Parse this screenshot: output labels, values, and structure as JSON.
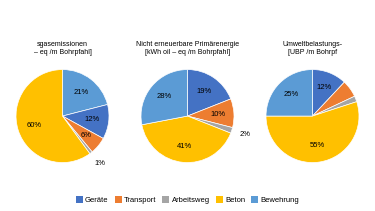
{
  "chart_data": [
    {
      "type": "pie",
      "title": "sgasemissionen\n– eq /m Bohrpfahl]",
      "categories": [
        "Bewehrung",
        "Geräte",
        "Transport",
        "Arbeitsweg",
        "Beton"
      ],
      "values": [
        21,
        12,
        6,
        1,
        60
      ],
      "value_labels": [
        "21%",
        "12%",
        "6%",
        "1%",
        "60%"
      ],
      "colors": [
        "#5B9BD5",
        "#4472C4",
        "#ED7D31",
        "#A5A5A5",
        "#FFC000"
      ],
      "data_labels": true
    },
    {
      "type": "pie",
      "title": "Nicht erneuerbare Primärenergie\n[kWh oil – eq /m Bohrpfahl]",
      "categories": [
        "Geräte",
        "Transport",
        "Arbeitsweg",
        "Beton",
        "Bewehrung"
      ],
      "values": [
        19,
        10,
        2,
        41,
        28
      ],
      "value_labels": [
        "19%",
        "10%",
        "2%",
        "41%",
        "28%"
      ],
      "colors": [
        "#4472C4",
        "#ED7D31",
        "#A5A5A5",
        "#FFC000",
        "#5B9BD5"
      ],
      "data_labels": true,
      "legend": "lower center"
    },
    {
      "type": "pie",
      "title": "Umweltbelastungs-\n[UBP /m Bohrpf",
      "categories": [
        "Geräte",
        "Transport",
        "Arbeitsweg",
        "Beton",
        "Bewehrung"
      ],
      "values": [
        12,
        6,
        2,
        55,
        25
      ],
      "value_labels": [
        "12%",
        null,
        null,
        "55%",
        "25%"
      ],
      "colors": [
        "#4472C4",
        "#ED7D31",
        "#A5A5A5",
        "#FFC000",
        "#5B9BD5"
      ],
      "data_labels": true
    }
  ]
}
